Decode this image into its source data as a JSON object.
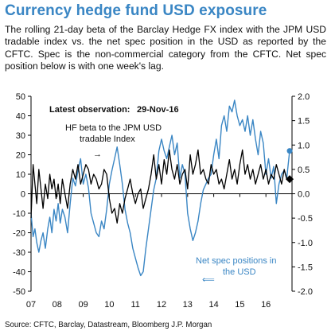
{
  "title": "Currency hedge fund USD exposure",
  "description": "The rolling 21-day beta of the Barclay Hedge FX index with the JPM USD tradable index vs. the net spec position in the USD as reported by the CFTC. Spec is the non-commercial category from the CFTC. Net spec position below is with one week's lag.",
  "source": "Source: CFTC, Barclay, Datastream, Bloomberg J.P. Morgan",
  "colors": {
    "title": "#3a86c4",
    "net_spec_series": "#3a86c4",
    "beta_series": "#000000"
  },
  "chart_data": {
    "type": "line",
    "x_range": [
      2007.0,
      2017.0
    ],
    "x_ticks": [
      "07",
      "08",
      "09",
      "10",
      "11",
      "12",
      "13",
      "14",
      "15",
      "16"
    ],
    "y_left": {
      "range": [
        -50,
        50
      ],
      "ticks": [
        "50",
        "40",
        "30",
        "20",
        "10",
        "0",
        "-10",
        "-20",
        "-30",
        "-40",
        "-50"
      ]
    },
    "y_right": {
      "range": [
        -2.0,
        2.0
      ],
      "ticks": [
        "2.0",
        "1.5",
        "1.0",
        "0.5",
        "0.0",
        "-0.5",
        "-1.0",
        "-1.5",
        "-2.0"
      ]
    },
    "grid": false,
    "annotations": {
      "latest_label": "Latest observation:",
      "latest_date": "29-Nov-16",
      "beta_label_line1": "HF beta to the JPM USD",
      "beta_label_line2": "tradable Index",
      "beta_arrow": "→",
      "spec_label_line1": "Net spec positions in",
      "spec_label_line2": "the USD",
      "spec_arrow": "⟸"
    },
    "series": [
      {
        "name": "HF beta to the JPM USD tradable Index",
        "axis": "right",
        "x": [
          2007.0,
          2007.08,
          2007.15,
          2007.22,
          2007.3,
          2007.38,
          2007.46,
          2007.55,
          2007.64,
          2007.72,
          2007.8,
          2007.88,
          2007.96,
          2008.04,
          2008.12,
          2008.2,
          2008.3,
          2008.4,
          2008.5,
          2008.6,
          2008.7,
          2008.8,
          2008.9,
          2009.0,
          2009.1,
          2009.2,
          2009.3,
          2009.4,
          2009.5,
          2009.6,
          2009.7,
          2009.8,
          2009.9,
          2010.0,
          2010.1,
          2010.2,
          2010.3,
          2010.4,
          2010.5,
          2010.6,
          2010.7,
          2010.8,
          2010.9,
          2011.0,
          2011.1,
          2011.2,
          2011.3,
          2011.4,
          2011.5,
          2011.6,
          2011.7,
          2011.8,
          2011.9,
          2012.0,
          2012.1,
          2012.2,
          2012.3,
          2012.4,
          2012.5,
          2012.6,
          2012.7,
          2012.8,
          2012.9,
          2013.0,
          2013.1,
          2013.2,
          2013.3,
          2013.4,
          2013.5,
          2013.6,
          2013.7,
          2013.8,
          2013.9,
          2014.0,
          2014.1,
          2014.2,
          2014.3,
          2014.4,
          2014.5,
          2014.6,
          2014.7,
          2014.8,
          2014.9,
          2015.0,
          2015.1,
          2015.2,
          2015.3,
          2015.4,
          2015.5,
          2015.6,
          2015.7,
          2015.8,
          2015.9,
          2016.0,
          2016.1,
          2016.2,
          2016.3,
          2016.4,
          2016.5,
          2016.6,
          2016.7,
          2016.8,
          2016.91
        ],
        "values": [
          -0.5,
          0.6,
          0.2,
          -0.2,
          0.5,
          0.1,
          -0.3,
          0.2,
          -0.1,
          0.4,
          0.1,
          0.3,
          -0.1,
          0.2,
          -0.2,
          0.3,
          0.0,
          -0.3,
          0.2,
          0.5,
          0.3,
          0.6,
          0.2,
          0.4,
          0.6,
          0.5,
          0.2,
          0.4,
          0.3,
          0.1,
          0.2,
          0.5,
          0.4,
          -0.1,
          -0.4,
          -0.3,
          -0.6,
          -0.2,
          -0.4,
          -0.1,
          0.1,
          0.3,
          0.0,
          -0.2,
          0.0,
          0.1,
          -0.3,
          -0.1,
          0.1,
          0.4,
          0.8,
          0.3,
          0.6,
          0.2,
          0.7,
          0.4,
          0.9,
          0.5,
          0.3,
          0.6,
          0.2,
          0.4,
          0.5,
          0.1,
          0.8,
          0.4,
          0.6,
          0.9,
          0.4,
          0.5,
          0.3,
          0.2,
          0.6,
          0.4,
          0.5,
          0.2,
          0.3,
          0.1,
          0.4,
          0.7,
          0.3,
          0.5,
          0.2,
          0.6,
          0.9,
          0.4,
          0.6,
          0.3,
          0.5,
          0.2,
          0.4,
          0.6,
          0.3,
          0.5,
          0.2,
          0.4,
          0.3,
          0.6,
          0.4,
          0.2,
          0.5,
          0.3,
          0.3
        ]
      },
      {
        "name": "Net spec positions in the USD",
        "axis": "left",
        "x": [
          2007.0,
          2007.08,
          2007.15,
          2007.22,
          2007.3,
          2007.38,
          2007.46,
          2007.55,
          2007.64,
          2007.72,
          2007.8,
          2007.88,
          2007.96,
          2008.04,
          2008.12,
          2008.2,
          2008.3,
          2008.4,
          2008.5,
          2008.6,
          2008.7,
          2008.8,
          2008.9,
          2009.0,
          2009.1,
          2009.2,
          2009.3,
          2009.4,
          2009.5,
          2009.6,
          2009.7,
          2009.8,
          2009.9,
          2010.0,
          2010.1,
          2010.2,
          2010.3,
          2010.4,
          2010.5,
          2010.6,
          2010.7,
          2010.8,
          2010.9,
          2011.0,
          2011.1,
          2011.2,
          2011.3,
          2011.4,
          2011.5,
          2011.6,
          2011.7,
          2011.8,
          2011.9,
          2012.0,
          2012.1,
          2012.2,
          2012.3,
          2012.4,
          2012.5,
          2012.6,
          2012.7,
          2012.8,
          2012.9,
          2013.0,
          2013.1,
          2013.2,
          2013.3,
          2013.4,
          2013.5,
          2013.6,
          2013.7,
          2013.8,
          2013.9,
          2014.0,
          2014.1,
          2014.2,
          2014.3,
          2014.4,
          2014.5,
          2014.6,
          2014.7,
          2014.8,
          2014.9,
          2015.0,
          2015.1,
          2015.2,
          2015.3,
          2015.4,
          2015.5,
          2015.6,
          2015.7,
          2015.8,
          2015.9,
          2016.0,
          2016.1,
          2016.2,
          2016.3,
          2016.4,
          2016.5,
          2016.6,
          2016.7,
          2016.8,
          2016.91
        ],
        "values": [
          -10,
          -22,
          -18,
          -25,
          -30,
          -24,
          -20,
          -28,
          -18,
          -12,
          -20,
          -8,
          -14,
          -5,
          -15,
          -8,
          -12,
          -20,
          -5,
          8,
          4,
          12,
          18,
          5,
          10,
          3,
          -10,
          -15,
          -20,
          -22,
          -14,
          -18,
          -8,
          5,
          12,
          18,
          24,
          15,
          5,
          -8,
          -15,
          -20,
          -28,
          -33,
          -38,
          -42,
          -40,
          -28,
          -18,
          -8,
          2,
          8,
          22,
          28,
          22,
          18,
          24,
          30,
          20,
          26,
          8,
          15,
          10,
          -10,
          -18,
          -24,
          -20,
          -14,
          -5,
          2,
          5,
          8,
          10,
          20,
          28,
          18,
          35,
          40,
          32,
          45,
          42,
          48,
          40,
          35,
          38,
          32,
          40,
          30,
          38,
          28,
          20,
          32,
          26,
          10,
          18,
          8,
          14,
          -5,
          5,
          10,
          12,
          8,
          22
        ]
      }
    ]
  }
}
